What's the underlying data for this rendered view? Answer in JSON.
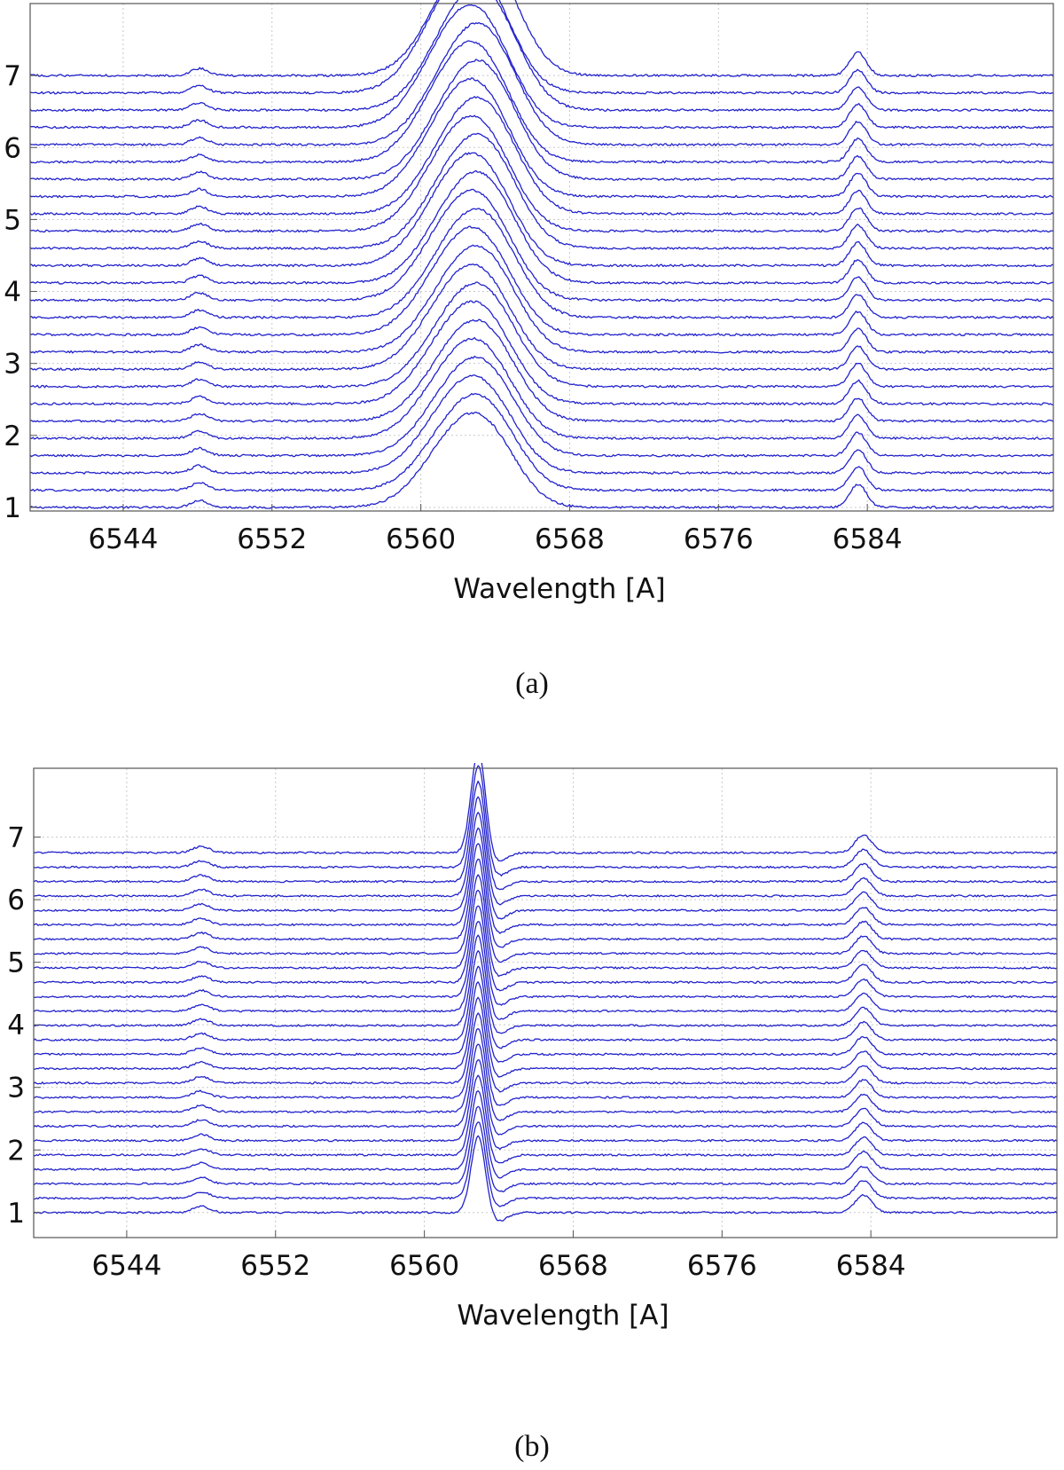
{
  "chart_data": [
    {
      "id": "a",
      "type": "line",
      "caption": "(a)",
      "xlabel": "Wavelength [A]",
      "ylabel": "",
      "xlim": [
        6539,
        6594
      ],
      "ylim": [
        0.95,
        8.0
      ],
      "xticks": [
        6544,
        6552,
        6560,
        6568,
        6576,
        6584
      ],
      "yticks": [
        1,
        2,
        3,
        4,
        5,
        6,
        7
      ],
      "grid": true,
      "line_color": "#2222cc",
      "n_spectra": 26,
      "offset_min": 1.0,
      "offset_step": 0.24,
      "halpha_center": 6562.8,
      "halpha_fwhm_angstrom": 4.2,
      "halpha_peak_height": 1.6,
      "nii_lines": [
        {
          "center": 6548.1,
          "height": 0.1
        },
        {
          "center": 6583.5,
          "height": 0.32
        }
      ],
      "continuum_level_at_offsets": "each spectrum continuum equals its offset"
    },
    {
      "id": "b",
      "type": "line",
      "caption": "(b)",
      "xlabel": "Wavelength [A]",
      "ylabel": "",
      "xlim": [
        6539,
        6594
      ],
      "ylim": [
        0.6,
        8.1
      ],
      "xticks": [
        6544,
        6552,
        6560,
        6568,
        6576,
        6584
      ],
      "yticks": [
        1,
        2,
        3,
        4,
        5,
        6,
        7
      ],
      "grid": true,
      "line_color": "#2222cc",
      "n_spectra": 26,
      "offset_min": 1.0,
      "offset_step": 0.23,
      "halpha_center": 6562.9,
      "halpha_fwhm_angstrom": 0.9,
      "halpha_peak_height": 1.45,
      "nii_lines": [
        {
          "center": 6548.0,
          "height": 0.1
        },
        {
          "center": 6583.6,
          "height": 0.28
        }
      ],
      "continuum_level_at_offsets": "each spectrum continuum equals its offset"
    }
  ]
}
